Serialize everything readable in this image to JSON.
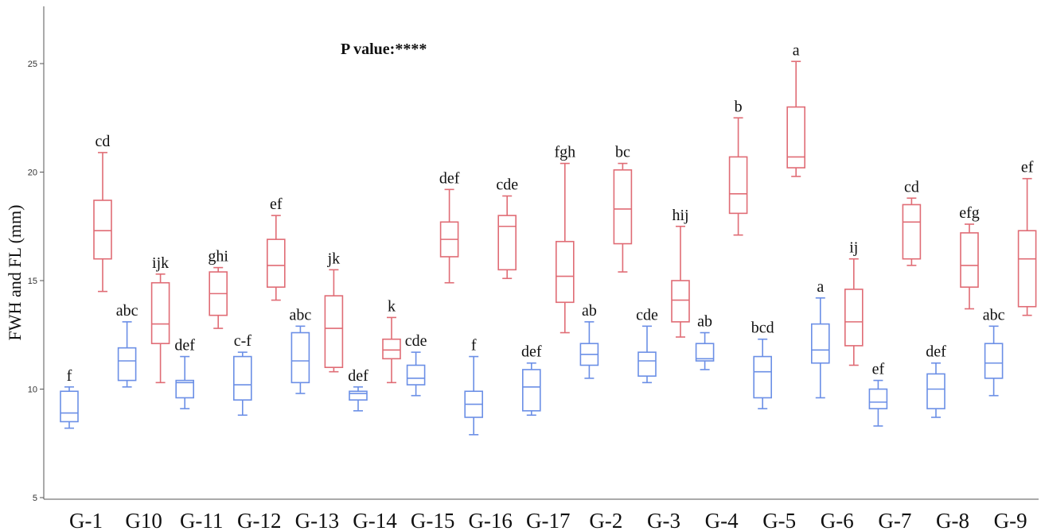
{
  "chart_data": {
    "type": "box",
    "title": "",
    "annotation": "P value:****",
    "ylabel": "FWH and FL (mm)",
    "xlabel": "",
    "ylim": [
      5,
      27
    ],
    "yticks": [
      5,
      10,
      15,
      20,
      25
    ],
    "grid": false,
    "categories": [
      "G-1",
      "G10",
      "G-11",
      "G-12",
      "G-13",
      "G-14",
      "G-15",
      "G-16",
      "G-17",
      "G-2",
      "G-3",
      "G-4",
      "G-5",
      "G-6",
      "G-7",
      "G-8",
      "G-9"
    ],
    "colors": {
      "blue": "#6b8fe6",
      "red": "#e06c75"
    },
    "series": [
      {
        "color": "blue",
        "boxes": [
          {
            "min": 8.2,
            "q1": 8.5,
            "median": 8.9,
            "q3": 9.9,
            "max": 10.1,
            "letter": "f"
          },
          {
            "min": 10.1,
            "q1": 10.4,
            "median": 11.3,
            "q3": 11.9,
            "max": 13.1,
            "letter": "abc"
          },
          {
            "min": 9.1,
            "q1": 9.6,
            "median": 10.3,
            "q3": 10.4,
            "max": 11.5,
            "letter": "def"
          },
          {
            "min": 8.8,
            "q1": 9.5,
            "median": 10.2,
            "q3": 11.5,
            "max": 11.7,
            "letter": "c-f"
          },
          {
            "min": 9.8,
            "q1": 10.3,
            "median": 11.3,
            "q3": 12.6,
            "max": 12.9,
            "letter": "abc"
          },
          {
            "min": 9.0,
            "q1": 9.5,
            "median": 9.8,
            "q3": 9.9,
            "max": 10.1,
            "letter": "def"
          },
          {
            "min": 9.7,
            "q1": 10.2,
            "median": 10.5,
            "q3": 11.1,
            "max": 11.7,
            "letter": "cde"
          },
          {
            "min": 7.9,
            "q1": 8.7,
            "median": 9.3,
            "q3": 9.9,
            "max": 11.5,
            "letter": "f"
          },
          {
            "min": 8.8,
            "q1": 9.0,
            "median": 10.1,
            "q3": 10.9,
            "max": 11.2,
            "letter": "def"
          },
          {
            "min": 10.5,
            "q1": 11.1,
            "median": 11.6,
            "q3": 12.1,
            "max": 13.1,
            "letter": "ab"
          },
          {
            "min": 10.3,
            "q1": 10.6,
            "median": 11.3,
            "q3": 11.7,
            "max": 12.9,
            "letter": "cde"
          },
          {
            "min": 10.9,
            "q1": 11.3,
            "median": 11.4,
            "q3": 12.1,
            "max": 12.6,
            "letter": "ab"
          },
          {
            "min": 9.1,
            "q1": 9.6,
            "median": 10.8,
            "q3": 11.5,
            "max": 12.3,
            "letter": "bcd"
          },
          {
            "min": 9.6,
            "q1": 11.2,
            "median": 11.8,
            "q3": 13.0,
            "max": 14.2,
            "letter": "a"
          },
          {
            "min": 8.3,
            "q1": 9.1,
            "median": 9.4,
            "q3": 10.0,
            "max": 10.4,
            "letter": "ef"
          },
          {
            "min": 8.7,
            "q1": 9.1,
            "median": 10.0,
            "q3": 10.7,
            "max": 11.2,
            "letter": "def"
          },
          {
            "min": 9.7,
            "q1": 10.5,
            "median": 11.2,
            "q3": 12.1,
            "max": 12.9,
            "letter": "abc"
          }
        ]
      },
      {
        "color": "red",
        "boxes": [
          {
            "min": 14.5,
            "q1": 16.0,
            "median": 17.3,
            "q3": 18.7,
            "max": 20.9,
            "letter": "cd"
          },
          {
            "min": 10.3,
            "q1": 12.1,
            "median": 13.0,
            "q3": 14.9,
            "max": 15.3,
            "letter": "ijk"
          },
          {
            "min": 12.8,
            "q1": 13.4,
            "median": 14.4,
            "q3": 15.4,
            "max": 15.6,
            "letter": "ghi"
          },
          {
            "min": 14.1,
            "q1": 14.7,
            "median": 15.7,
            "q3": 16.9,
            "max": 18.0,
            "letter": "ef"
          },
          {
            "min": 10.8,
            "q1": 11.0,
            "median": 12.8,
            "q3": 14.3,
            "max": 15.5,
            "letter": "jk"
          },
          {
            "min": 10.3,
            "q1": 11.4,
            "median": 11.8,
            "q3": 12.3,
            "max": 13.3,
            "letter": "k"
          },
          {
            "min": 14.9,
            "q1": 16.1,
            "median": 16.9,
            "q3": 17.7,
            "max": 19.2,
            "letter": "def"
          },
          {
            "min": 15.1,
            "q1": 15.5,
            "median": 17.5,
            "q3": 18.0,
            "max": 18.9,
            "letter": "cde"
          },
          {
            "min": 12.6,
            "q1": 14.0,
            "median": 15.2,
            "q3": 16.8,
            "max": 20.4,
            "letter": "fgh"
          },
          {
            "min": 15.4,
            "q1": 16.7,
            "median": 18.3,
            "q3": 20.1,
            "max": 20.4,
            "letter": "bc"
          },
          {
            "min": 12.4,
            "q1": 13.1,
            "median": 14.1,
            "q3": 15.0,
            "max": 17.5,
            "letter": "hij"
          },
          {
            "min": 17.1,
            "q1": 18.1,
            "median": 19.0,
            "q3": 20.7,
            "max": 22.5,
            "letter": "b"
          },
          {
            "min": 19.8,
            "q1": 20.2,
            "median": 20.7,
            "q3": 23.0,
            "max": 25.1,
            "letter": "a"
          },
          {
            "min": 11.1,
            "q1": 12.0,
            "median": 13.1,
            "q3": 14.6,
            "max": 16.0,
            "letter": "ij"
          },
          {
            "min": 15.7,
            "q1": 16.0,
            "median": 17.7,
            "q3": 18.5,
            "max": 18.8,
            "letter": "cd"
          },
          {
            "min": 13.7,
            "q1": 14.7,
            "median": 15.7,
            "q3": 17.2,
            "max": 17.6,
            "letter": "efg"
          },
          {
            "min": 13.4,
            "q1": 13.8,
            "median": 16.0,
            "q3": 17.3,
            "max": 19.7,
            "letter": "ef"
          }
        ]
      }
    ]
  }
}
